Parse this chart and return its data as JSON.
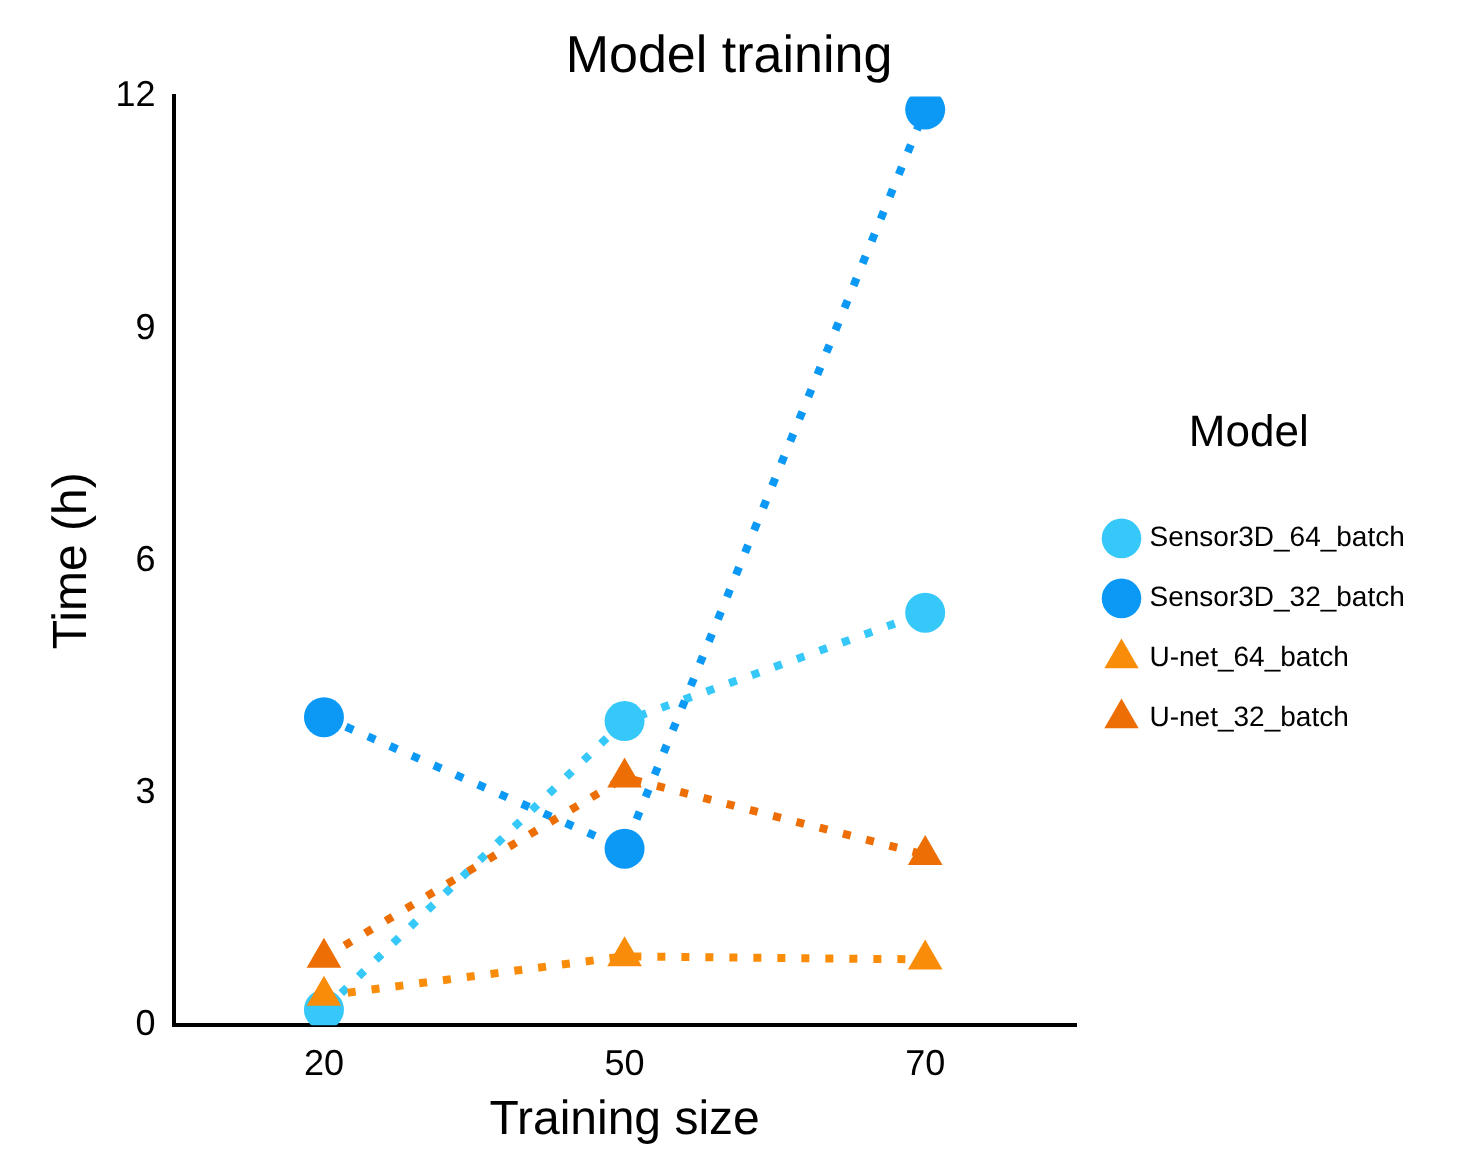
{
  "chart_data": {
    "type": "line",
    "title": "Model training",
    "xlabel": "Training size",
    "ylabel": "Time (h)",
    "legend_title": "Model",
    "categories": [
      "20",
      "50",
      "70"
    ],
    "series": [
      {
        "name": "Sensor3D_64_batch",
        "color": "#35c8f8",
        "marker": "circle",
        "values": [
          0.2,
          3.93,
          5.33
        ]
      },
      {
        "name": "Sensor3D_32_batch",
        "color": "#0b99f5",
        "marker": "circle",
        "values": [
          3.98,
          2.28,
          11.83
        ]
      },
      {
        "name": "U-net_64_batch",
        "color": "#f98d0a",
        "marker": "triangle",
        "values": [
          0.38,
          0.89,
          0.85
        ]
      },
      {
        "name": "U-net_32_batch",
        "color": "#ec6e04",
        "marker": "triangle",
        "values": [
          0.87,
          3.2,
          2.2
        ]
      }
    ],
    "ylim": [
      0,
      12
    ],
    "yticks": [
      0,
      3,
      6,
      9,
      12
    ],
    "grid": false,
    "legend": "right",
    "line_style": "dotted"
  }
}
